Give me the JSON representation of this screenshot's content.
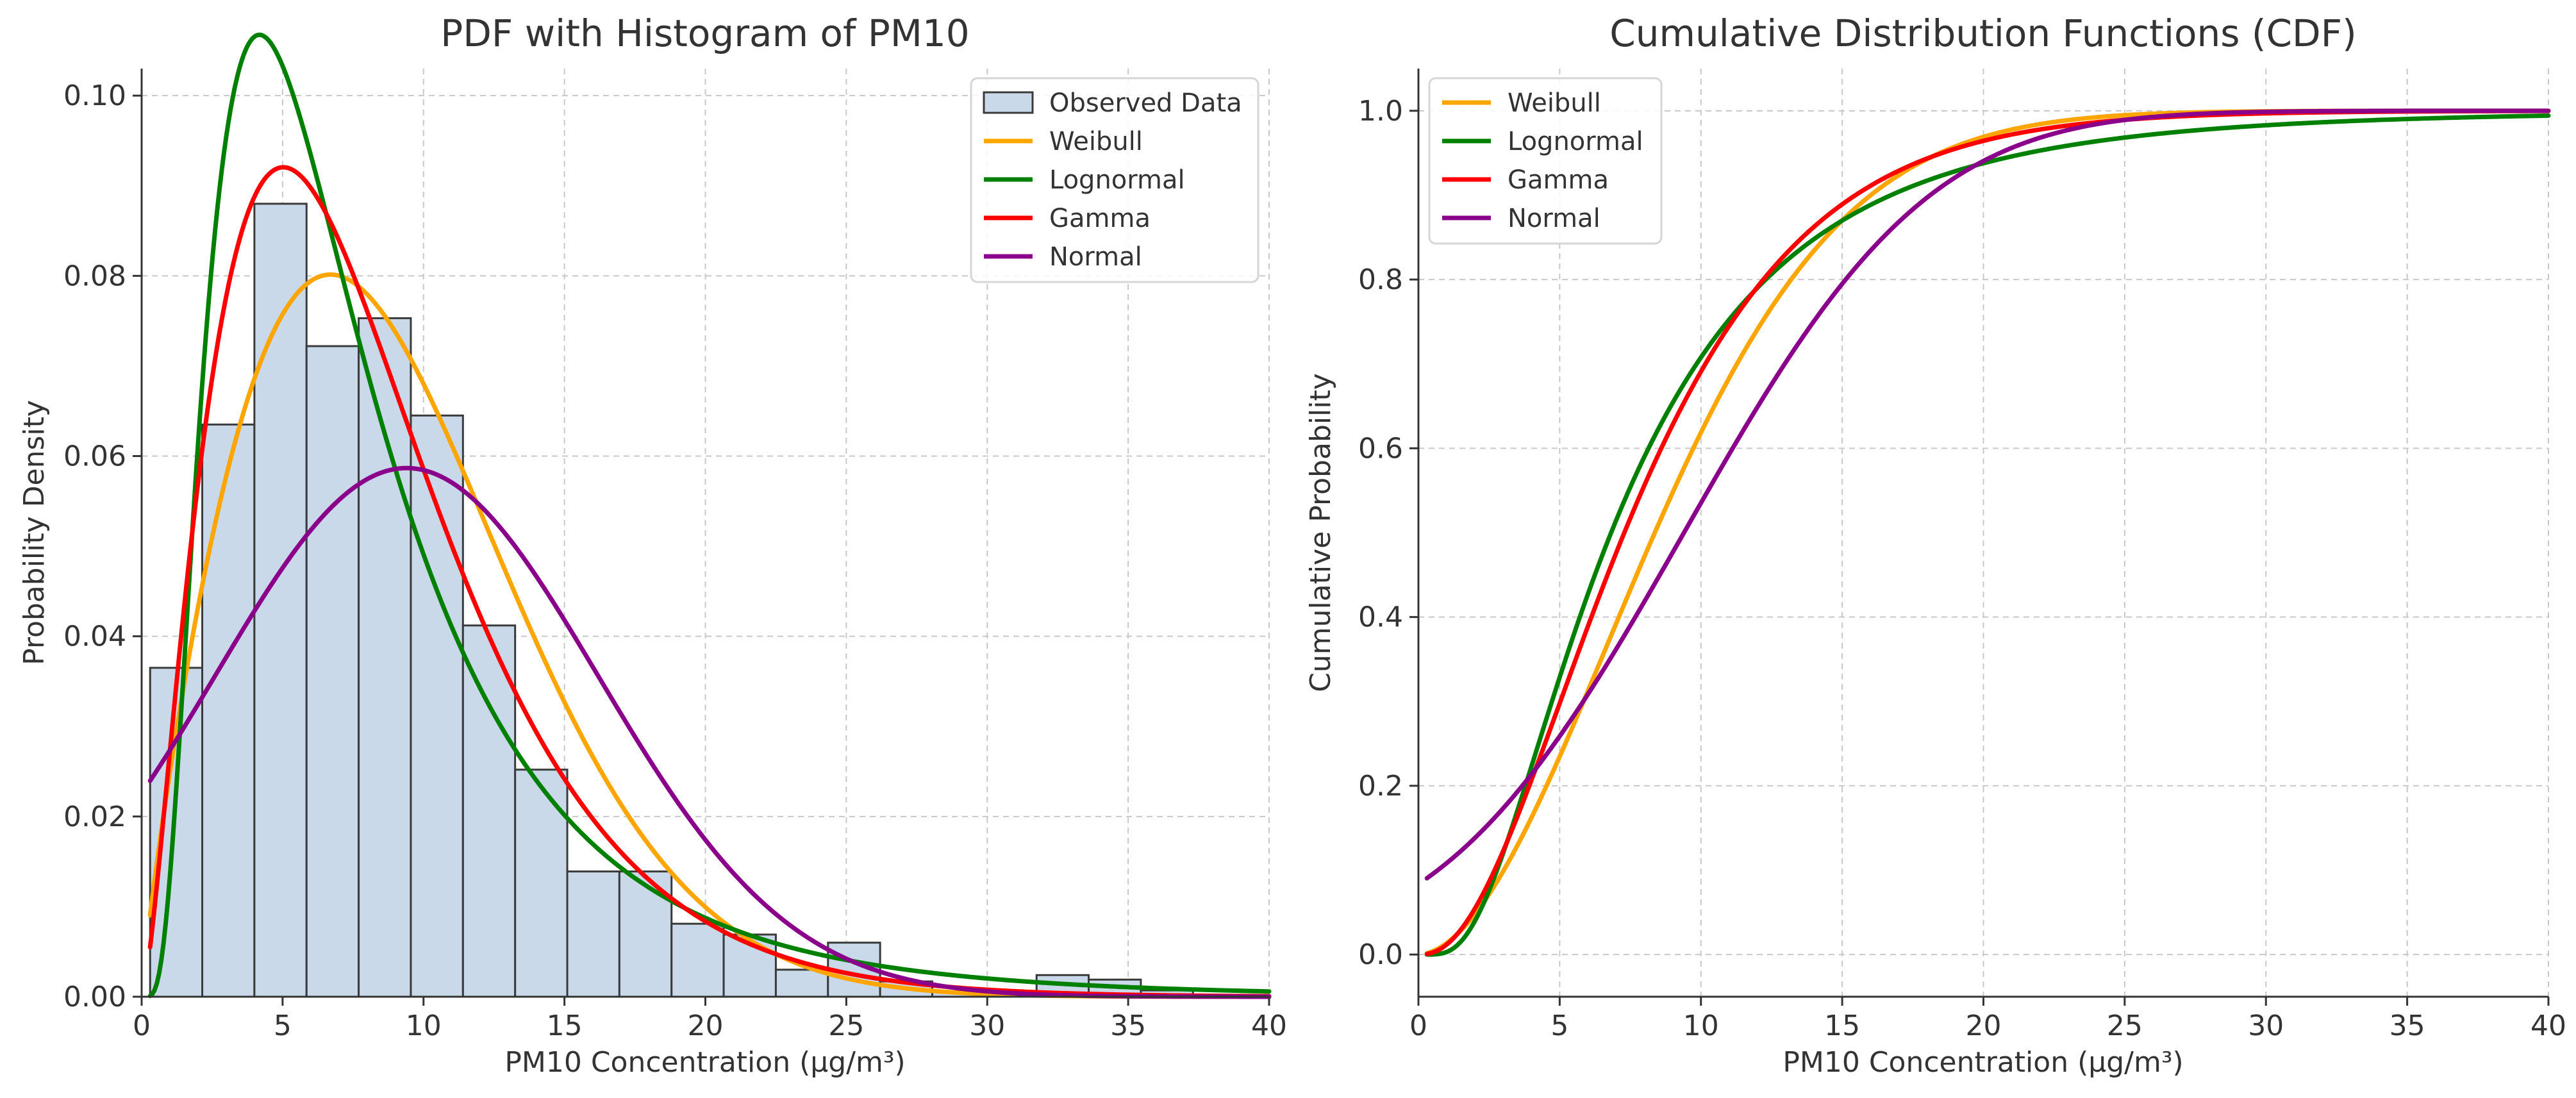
{
  "chart_data": [
    {
      "type": "bar",
      "title": "PDF with Histogram of PM10",
      "xlabel": "PM10 Concentration (µg/m³)",
      "ylabel": "Probability Density",
      "xlim": [
        0,
        40
      ],
      "ylim": [
        0,
        0.103
      ],
      "grid": true,
      "legend_position": "top-right",
      "x_ticks": [
        0,
        5,
        10,
        15,
        20,
        25,
        30,
        35,
        40
      ],
      "x_tick_labels": [
        "0",
        "5",
        "10",
        "15",
        "20",
        "25",
        "30",
        "35",
        "40"
      ],
      "y_ticks": [
        0,
        0.02,
        0.04,
        0.06,
        0.08,
        0.1
      ],
      "y_tick_labels": [
        "0.00",
        "0.02",
        "0.04",
        "0.06",
        "0.08",
        "0.10"
      ],
      "histogram": {
        "name": "Observed Data",
        "color": "#c9d9ea",
        "edge_color": "#3a3a3a",
        "bin_edges": [
          0.3,
          2.15,
          4.0,
          5.85,
          7.7,
          9.55,
          11.4,
          13.25,
          15.1,
          16.95,
          18.8,
          20.65,
          22.5,
          24.35,
          26.2,
          28.05,
          29.9,
          31.75,
          33.6,
          35.45,
          37.3,
          39.15
        ],
        "values": [
          0.0365,
          0.0635,
          0.088,
          0.0722,
          0.0753,
          0.0645,
          0.0412,
          0.0252,
          0.0139,
          0.0139,
          0.0081,
          0.0069,
          0.003,
          0.006,
          0.0017,
          0.0005,
          0.0005,
          0.0024,
          0.0019,
          0.0007,
          0.0002
        ]
      },
      "series": [
        {
          "name": "Weibull",
          "color": "#ffa500",
          "dist": "weibull",
          "params": {
            "k": 1.85,
            "lambda": 10.2
          }
        },
        {
          "name": "Lognormal",
          "color": "#008000",
          "dist": "lognormal",
          "params": {
            "mu": 1.92,
            "sigma": 0.7
          }
        },
        {
          "name": "Gamma",
          "color": "#ff0000",
          "dist": "gamma",
          "params": {
            "k": 2.5,
            "theta": 3.35
          }
        },
        {
          "name": "Normal",
          "color": "#8b008b",
          "dist": "normal",
          "params": {
            "mu": 9.4,
            "sigma": 6.8
          }
        }
      ],
      "curve_x_range": [
        0.3,
        40
      ]
    },
    {
      "type": "line",
      "title": "Cumulative Distribution Functions (CDF)",
      "xlabel": "PM10 Concentration (µg/m³)",
      "ylabel": "Cumulative Probability",
      "xlim": [
        0,
        40
      ],
      "ylim": [
        -0.05,
        1.05
      ],
      "grid": true,
      "legend_position": "top-left",
      "x_ticks": [
        0,
        5,
        10,
        15,
        20,
        25,
        30,
        35,
        40
      ],
      "x_tick_labels": [
        "0",
        "5",
        "10",
        "15",
        "20",
        "25",
        "30",
        "35",
        "40"
      ],
      "y_ticks": [
        0,
        0.2,
        0.4,
        0.6,
        0.8,
        1.0
      ],
      "y_tick_labels": [
        "0.0",
        "0.2",
        "0.4",
        "0.6",
        "0.8",
        "1.0"
      ],
      "series": [
        {
          "name": "Weibull",
          "color": "#ffa500",
          "dist": "weibull",
          "params": {
            "k": 1.85,
            "lambda": 10.2
          }
        },
        {
          "name": "Lognormal",
          "color": "#008000",
          "dist": "lognormal",
          "params": {
            "mu": 1.92,
            "sigma": 0.7
          }
        },
        {
          "name": "Gamma",
          "color": "#ff0000",
          "dist": "gamma",
          "params": {
            "k": 2.5,
            "theta": 3.35
          }
        },
        {
          "name": "Normal",
          "color": "#8b008b",
          "dist": "normal",
          "params": {
            "mu": 9.4,
            "sigma": 6.8
          }
        }
      ],
      "curve_x_range": [
        0.3,
        40
      ]
    }
  ]
}
